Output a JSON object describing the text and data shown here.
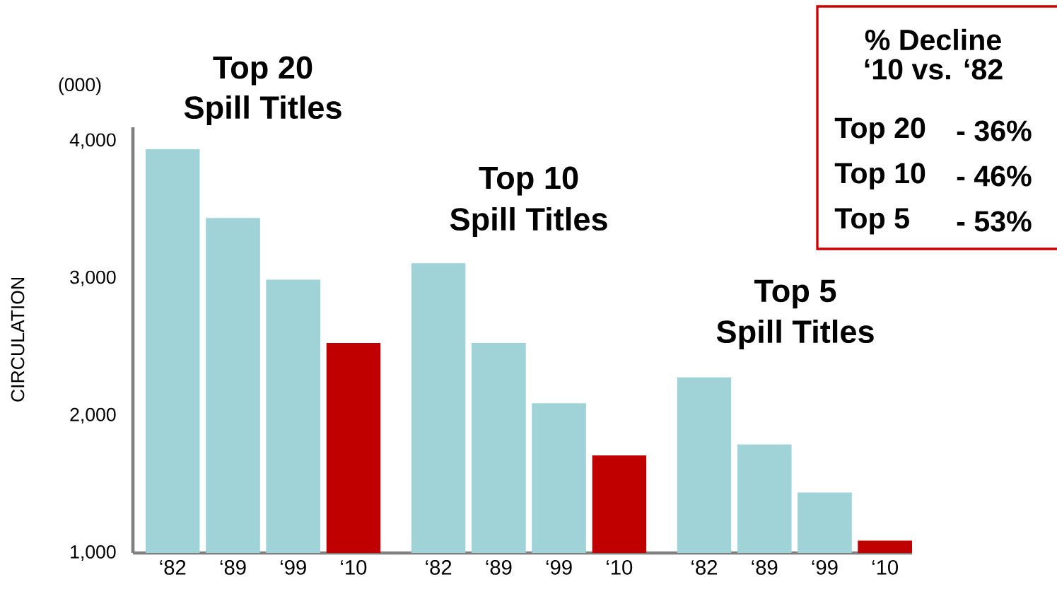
{
  "chart_data": {
    "type": "bar",
    "ylabel": "CIRCULATION",
    "categories": [
      "‘82",
      "‘89",
      "‘99",
      "‘10",
      "‘82",
      "‘89",
      "‘99",
      "‘10",
      "‘82",
      "‘89",
      "‘99",
      "‘10"
    ],
    "values": [
      3940,
      3440,
      2990,
      2530,
      3110,
      2530,
      2090,
      1710,
      2280,
      1790,
      1440,
      1090
    ],
    "colors": [
      "#9fd3d8",
      "#9fd3d8",
      "#9fd3d8",
      "#c00000",
      "#9fd3d8",
      "#9fd3d8",
      "#9fd3d8",
      "#c00000",
      "#9fd3d8",
      "#9fd3d8",
      "#9fd3d8",
      "#c00000"
    ],
    "ylim": [
      1000,
      4100
    ],
    "yticks": [
      {
        "value": 1000,
        "label": "1,000"
      },
      {
        "value": 2000,
        "label": "2,000"
      },
      {
        "value": 3000,
        "label": "3,000"
      },
      {
        "value": 4000,
        "label": "4,000"
      }
    ],
    "annotations": [
      "(000)",
      "Top 20",
      "Spill Titles",
      "Top 10",
      "Spill Titles",
      "Top 5",
      "Spill Titles",
      "% Decline",
      "‘10 vs. ‘82",
      "Top 20",
      "- 36%",
      "Top 10",
      "- 46%",
      "Top 5",
      "- 53%"
    ]
  }
}
